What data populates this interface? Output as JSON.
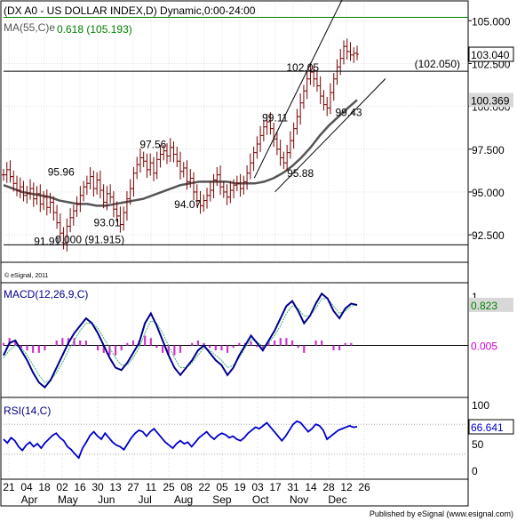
{
  "chart_data": {
    "type": "candlestick",
    "title": "(DX A0 - US DOLLAR INDEX,D) Dynamic,0:00-24:00",
    "ma_label": "MA(55,C)e",
    "ylim": [
      91.0,
      106.0
    ],
    "price_ticks": [
      {
        "value": 105.0,
        "label": "105.000"
      },
      {
        "value": 102.5,
        "label": "102.500"
      },
      {
        "value": 100.0,
        "label": "100.000"
      },
      {
        "value": 97.5,
        "label": "97.500"
      },
      {
        "value": 95.0,
        "label": "95.000"
      },
      {
        "value": 92.5,
        "label": "92.500"
      }
    ],
    "x_day_labels": [
      "21",
      "04",
      "18",
      "02",
      "16",
      "30",
      "13",
      "27",
      "11",
      "25",
      "08",
      "22",
      "05",
      "19",
      "03",
      "17",
      "31",
      "14",
      "28",
      "12",
      "26"
    ],
    "x_month_labels": [
      "Apr",
      "May",
      "Jun",
      "Jul",
      "Aug",
      "Sep",
      "Oct",
      "Nov",
      "Dec"
    ],
    "last_price": {
      "value": 103.04,
      "label": "103.040"
    },
    "ma_last": {
      "value": 100.369,
      "label": "100.369"
    },
    "fib_level": {
      "value": 105.193,
      "label": "0.618 (105.193)",
      "color": "#008000"
    },
    "horizontal_levels": [
      {
        "value": 102.05,
        "label": "(102.050)"
      },
      {
        "value": 91.915,
        "label": "0.000 (91.915)"
      }
    ],
    "annotations": [
      {
        "x": 0.125,
        "value": 95.96,
        "label": "95.96"
      },
      {
        "x": 0.325,
        "value": 97.56,
        "label": "97.56"
      },
      {
        "x": 0.225,
        "value": 93.01,
        "label": "93.01"
      },
      {
        "x": 0.4,
        "value": 94.07,
        "label": "94.07"
      },
      {
        "x": 0.095,
        "value": 91.91,
        "label": "91.91"
      },
      {
        "x": 0.59,
        "value": 99.11,
        "label": "99.11"
      },
      {
        "x": 0.645,
        "value": 95.88,
        "label": "95.88"
      },
      {
        "x": 0.65,
        "value": 102.05,
        "label": "102.05"
      },
      {
        "x": 0.75,
        "value": 99.43,
        "label": "99.43"
      }
    ],
    "trend_channel": {
      "lower": [
        {
          "x": 0.535,
          "value": 93.5
        },
        {
          "x": 0.735,
          "value": 99.0
        }
      ],
      "upper": [
        {
          "x": 0.585,
          "value": 98.0
        },
        {
          "x": 0.695,
          "value": 104.0
        }
      ]
    },
    "ohlc_close": [
      96.0,
      96.3,
      95.9,
      95.5,
      95.1,
      95.3,
      94.8,
      94.9,
      95.2,
      94.6,
      94.9,
      94.3,
      94.7,
      94.1,
      94.4,
      93.8,
      93.2,
      92.6,
      92.0,
      93.0,
      93.5,
      93.9,
      94.3,
      94.8,
      95.3,
      95.5,
      95.9,
      95.2,
      95.7,
      95.1,
      94.4,
      94.9,
      94.7,
      94.0,
      93.6,
      93.1,
      93.8,
      94.6,
      95.2,
      96.1,
      96.6,
      97.0,
      96.8,
      96.3,
      96.7,
      96.1,
      96.9,
      97.2,
      97.4,
      97.1,
      97.6,
      97.2,
      96.8,
      96.2,
      96.4,
      95.6,
      95.8,
      95.0,
      94.5,
      94.2,
      94.5,
      94.8,
      95.1,
      95.7,
      96.0,
      95.3,
      95.0,
      94.7,
      95.1,
      95.4,
      95.5,
      95.2,
      95.6,
      96.1,
      96.7,
      97.3,
      97.8,
      98.3,
      98.8,
      99.1,
      98.7,
      98.1,
      97.5,
      97.0,
      96.7,
      97.3,
      98.0,
      98.7,
      99.4,
      100.2,
      100.9,
      101.6,
      102.0,
      101.6,
      101.2,
      100.6,
      100.1,
      99.9,
      100.8,
      101.6,
      102.3,
      102.8,
      103.5,
      103.2,
      103.0,
      103.1,
      103.04
    ],
    "ma_values": [
      95.4,
      95.2,
      95.0,
      94.9,
      94.8,
      94.7,
      94.5,
      94.4,
      94.3,
      94.3,
      94.2,
      94.2,
      94.3,
      94.4,
      94.5,
      94.6,
      94.8,
      95.0,
      95.2,
      95.4,
      95.5,
      95.6,
      95.6,
      95.6,
      95.6,
      95.5,
      95.5,
      95.5,
      95.6,
      95.8,
      96.1,
      96.5,
      97.0,
      97.6,
      98.3,
      98.9,
      99.4,
      99.9,
      100.369
    ],
    "macd": {
      "label": "MACD(12,26,9,C)",
      "ylim": [
        -1.0,
        1.2
      ],
      "ticks": [
        {
          "value": 1.0,
          "label": "1"
        }
      ],
      "last": {
        "value": 0.823,
        "label": "0.823"
      },
      "signal_last": {
        "value": 0.005,
        "label": "0.005"
      },
      "line": [
        -0.2,
        0.05,
        0.1,
        -0.1,
        -0.3,
        -0.55,
        -0.75,
        -0.85,
        -0.7,
        -0.45,
        -0.2,
        0.05,
        0.25,
        0.4,
        0.55,
        0.45,
        0.25,
        0.0,
        -0.25,
        -0.45,
        -0.5,
        -0.35,
        -0.15,
        0.05,
        0.45,
        0.65,
        0.4,
        0.1,
        -0.2,
        -0.45,
        -0.6,
        -0.45,
        -0.3,
        -0.1,
        0.0,
        -0.15,
        -0.3,
        -0.4,
        -0.6,
        -0.45,
        -0.2,
        0.0,
        0.2,
        0.05,
        -0.1,
        0.1,
        0.3,
        0.55,
        0.8,
        0.9,
        0.7,
        0.45,
        0.6,
        0.85,
        1.05,
        0.95,
        0.7,
        0.55,
        0.75,
        0.85,
        0.82
      ],
      "signal": [
        -0.25,
        -0.1,
        0.0,
        -0.05,
        -0.2,
        -0.4,
        -0.6,
        -0.75,
        -0.7,
        -0.55,
        -0.35,
        -0.1,
        0.1,
        0.3,
        0.45,
        0.45,
        0.35,
        0.15,
        -0.05,
        -0.25,
        -0.4,
        -0.4,
        -0.25,
        -0.05,
        0.25,
        0.5,
        0.45,
        0.25,
        0.0,
        -0.25,
        -0.45,
        -0.45,
        -0.35,
        -0.2,
        -0.05,
        -0.1,
        -0.2,
        -0.3,
        -0.45,
        -0.4,
        -0.25,
        -0.05,
        0.12,
        0.08,
        -0.02,
        0.05,
        0.2,
        0.4,
        0.65,
        0.8,
        0.75,
        0.6,
        0.6,
        0.75,
        0.95,
        0.95,
        0.8,
        0.65,
        0.7,
        0.8,
        0.82
      ],
      "hist": [
        0.05,
        0.15,
        0.1,
        -0.05,
        -0.1,
        -0.15,
        -0.15,
        -0.1,
        0.0,
        0.1,
        0.15,
        0.15,
        0.15,
        0.1,
        0.1,
        0.0,
        -0.1,
        -0.15,
        -0.2,
        -0.2,
        -0.1,
        0.05,
        0.1,
        0.1,
        0.2,
        0.15,
        -0.05,
        -0.15,
        -0.2,
        -0.2,
        -0.15,
        0.0,
        0.05,
        0.1,
        0.05,
        -0.05,
        -0.1,
        -0.1,
        -0.15,
        -0.05,
        0.05,
        0.05,
        0.08,
        -0.03,
        -0.08,
        0.05,
        0.1,
        0.15,
        0.15,
        0.1,
        -0.05,
        -0.15,
        0.0,
        0.1,
        0.1,
        0.0,
        -0.1,
        -0.1,
        0.05,
        0.05,
        0.0
      ]
    },
    "rsi": {
      "label": "RSI(14,C)",
      "ylim": [
        0,
        100
      ],
      "ticks": [
        {
          "value": 100,
          "label": "100"
        },
        {
          "value": 50,
          "label": "50"
        },
        {
          "value": 0,
          "label": "0"
        }
      ],
      "levels": [
        70,
        30
      ],
      "last": {
        "value": 66.641,
        "label": "66.641"
      },
      "values": [
        50,
        45,
        52,
        48,
        40,
        35,
        42,
        46,
        40,
        44,
        38,
        45,
        50,
        55,
        58,
        52,
        48,
        40,
        36,
        30,
        25,
        38,
        46,
        55,
        60,
        54,
        50,
        58,
        52,
        46,
        42,
        40,
        36,
        44,
        52,
        58,
        62,
        60,
        54,
        60,
        64,
        58,
        52,
        46,
        42,
        38,
        44,
        48,
        44,
        46,
        40,
        46,
        52,
        56,
        60,
        54,
        50,
        55,
        58,
        56,
        52,
        54,
        50,
        48,
        52,
        58,
        62,
        66,
        64,
        68,
        72,
        66,
        60,
        54,
        48,
        54,
        62,
        70,
        74,
        72,
        66,
        60,
        64,
        70,
        68,
        62,
        50,
        54,
        58,
        62,
        64,
        66,
        68,
        66,
        66.641
      ]
    }
  },
  "footer_text": "Published by eSignal (www.esignal.com)",
  "copyright_text": "© eSignal, 2011",
  "colors": {
    "grid": "#c8c8c8",
    "candle": "#7a0000",
    "ma": "#555555",
    "macd_line": "#00008b",
    "signal": "#3cb371",
    "hist": "#cc33cc",
    "rsi": "#0000cc",
    "right_label_bg": "#d8d8d8",
    "macd_label_bg": "#d8d8d8",
    "signal_label_color": "#cc00cc",
    "macd_last_color": "#008000"
  }
}
